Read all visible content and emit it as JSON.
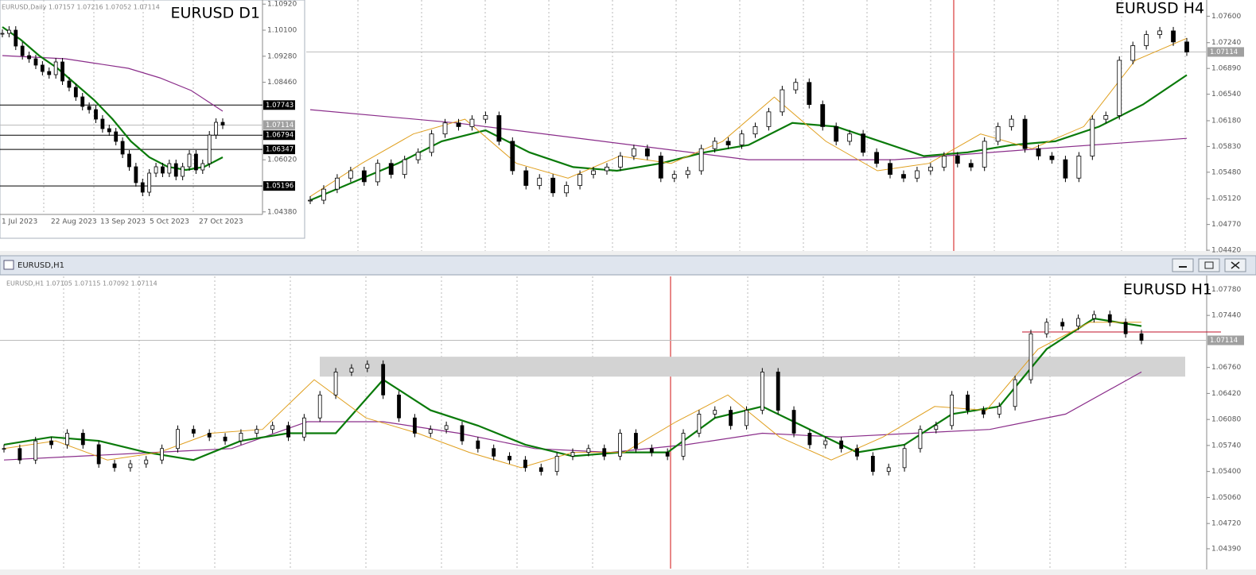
{
  "h4": {
    "title": "EURUSD H4",
    "ylim": [
      1.0441,
      1.0782
    ],
    "yticks": [
      {
        "value": 1.076,
        "label": "1.07600"
      },
      {
        "value": 1.0724,
        "label": "1.07240"
      },
      {
        "value": 1.0689,
        "label": "1.06890"
      },
      {
        "value": 1.0654,
        "label": "1.06540"
      },
      {
        "value": 1.0618,
        "label": "1.06180"
      },
      {
        "value": 1.0583,
        "label": "1.05830"
      },
      {
        "value": 1.0548,
        "label": "1.05480"
      },
      {
        "value": 1.0512,
        "label": "1.05120"
      },
      {
        "value": 1.0477,
        "label": "1.04770"
      },
      {
        "value": 1.0442,
        "label": "1.04420"
      }
    ],
    "price_label": 1.07114,
    "closes": [
      1.051,
      1.0525,
      1.054,
      1.055,
      1.0535,
      1.056,
      1.0545,
      1.0565,
      1.0575,
      1.06,
      1.0615,
      1.061,
      1.062,
      1.0625,
      1.059,
      1.055,
      1.053,
      1.054,
      1.052,
      1.053,
      1.0545,
      1.055,
      1.0555,
      1.057,
      1.058,
      1.057,
      1.054,
      1.0545,
      1.055,
      1.058,
      1.059,
      1.0585,
      1.06,
      1.061,
      1.063,
      1.066,
      1.067,
      1.064,
      1.061,
      1.059,
      1.06,
      1.0575,
      1.056,
      1.0545,
      1.054,
      1.055,
      1.0555,
      1.057,
      1.056,
      1.0555,
      1.059,
      1.061,
      1.062,
      1.058,
      1.057,
      1.0565,
      1.054,
      1.057,
      1.062,
      1.0625,
      1.07,
      1.072,
      1.0735,
      1.074,
      1.0725,
      1.07114
    ],
    "ma_fast": [
      1.0515,
      1.056,
      1.06,
      1.062,
      1.056,
      1.054,
      1.057,
      1.056,
      1.059,
      1.065,
      1.059,
      1.055,
      1.056,
      1.06,
      1.058,
      1.061,
      1.07,
      1.073
    ],
    "ma_mid": [
      1.051,
      1.0535,
      1.056,
      1.059,
      1.0605,
      1.0575,
      1.0555,
      1.055,
      1.056,
      1.0575,
      1.0585,
      1.0615,
      1.061,
      1.059,
      1.057,
      1.0575,
      1.0585,
      1.059,
      1.061,
      1.064,
      1.068
    ],
    "ma_slow": [
      1.0633,
      1.0615,
      1.059,
      1.0565,
      1.0565,
      1.058,
      1.0594
    ]
  },
  "d1": {
    "info": "EURUSD,Daily  1.07157 1.07216 1.07052 1.07114",
    "title": "EURUSD D1",
    "ylim": [
      1.043,
      1.1105
    ],
    "yticks": [
      {
        "value": 1.1092,
        "label": "1.10920"
      },
      {
        "value": 1.101,
        "label": "1.10100"
      },
      {
        "value": 1.0928,
        "label": "1.09280"
      },
      {
        "value": 1.0846,
        "label": "1.08460"
      },
      {
        "value": 1.0602,
        "label": "1.06020"
      },
      {
        "value": 1.0438,
        "label": "1.04380"
      }
    ],
    "levels": [
      1.07743,
      1.06794,
      1.06347,
      1.05196
    ],
    "price_label": 1.07114,
    "dates": [
      "1 Jul 2023",
      "22 Aug 2023",
      "13 Sep 2023",
      "5 Oct 2023",
      "27 Oct 2023"
    ],
    "closes": [
      1.1,
      1.101,
      1.096,
      1.093,
      1.092,
      1.09,
      1.088,
      1.087,
      1.091,
      1.085,
      1.083,
      1.08,
      1.077,
      1.076,
      1.073,
      1.07,
      1.069,
      1.066,
      1.062,
      1.058,
      1.053,
      1.05,
      1.056,
      1.058,
      1.056,
      1.059,
      1.055,
      1.058,
      1.062,
      1.057,
      1.059,
      1.068,
      1.072,
      1.07114
    ],
    "ma_mid": [
      1.102,
      1.098,
      1.093,
      1.089,
      1.084,
      1.079,
      1.073,
      1.066,
      1.061,
      1.058,
      1.057,
      1.058,
      1.061
    ],
    "ma_slow": [
      1.093,
      1.0925,
      1.092,
      1.0905,
      1.089,
      1.086,
      1.082,
      1.0755
    ]
  },
  "h1": {
    "window_title": "EURUSD,H1",
    "info": "EURUSD,H1  1.07105 1.07115 1.07092 1.07114",
    "title": "EURUSD H1",
    "ylim": [
      1.0413,
      1.0795
    ],
    "yticks": [
      {
        "value": 1.0778,
        "label": "1.07780"
      },
      {
        "value": 1.0744,
        "label": "1.07440"
      },
      {
        "value": 1.0676,
        "label": "1.06760"
      },
      {
        "value": 1.0642,
        "label": "1.06420"
      },
      {
        "value": 1.0608,
        "label": "1.06080"
      },
      {
        "value": 1.0574,
        "label": "1.05740"
      },
      {
        "value": 1.054,
        "label": "1.05400"
      },
      {
        "value": 1.0506,
        "label": "1.05060"
      },
      {
        "value": 1.0472,
        "label": "1.04720"
      },
      {
        "value": 1.0439,
        "label": "1.04390"
      }
    ],
    "price_label": 1.07114,
    "zone": [
      1.0664,
      1.069
    ],
    "closes": [
      1.057,
      1.0555,
      1.058,
      1.0575,
      1.059,
      1.0575,
      1.055,
      1.0545,
      1.055,
      1.0555,
      1.057,
      1.0595,
      1.059,
      1.0585,
      1.058,
      1.059,
      1.0595,
      1.06,
      1.0585,
      1.061,
      1.064,
      1.067,
      1.0675,
      1.068,
      1.064,
      1.061,
      1.059,
      1.0595,
      1.06,
      1.058,
      1.057,
      1.056,
      1.0555,
      1.0545,
      1.054,
      1.056,
      1.0565,
      1.057,
      1.056,
      1.059,
      1.057,
      1.0565,
      1.056,
      1.059,
      1.0615,
      1.062,
      1.06,
      1.062,
      1.067,
      1.062,
      1.059,
      1.0575,
      1.058,
      1.057,
      1.056,
      1.054,
      1.0545,
      1.057,
      1.0595,
      1.06,
      1.064,
      1.062,
      1.0615,
      1.0625,
      1.066,
      1.072,
      1.0735,
      1.073,
      1.074,
      1.0745,
      1.0735,
      1.072,
      1.07114
    ],
    "ma_fast": [
      1.057,
      1.058,
      1.0555,
      1.0565,
      1.059,
      1.0595,
      1.066,
      1.061,
      1.059,
      1.0565,
      1.0545,
      1.0565,
      1.0565,
      1.0605,
      1.064,
      1.0585,
      1.0555,
      1.0585,
      1.0625,
      1.062,
      1.07,
      1.0735,
      1.0735
    ],
    "ma_mid": [
      1.0575,
      1.0585,
      1.058,
      1.0565,
      1.0555,
      1.058,
      1.059,
      1.059,
      1.066,
      1.062,
      1.06,
      1.0575,
      1.056,
      1.0565,
      1.0565,
      1.061,
      1.0625,
      1.0595,
      1.0565,
      1.0575,
      1.0615,
      1.0625,
      1.07,
      1.074,
      1.073
    ],
    "ma_slow": [
      1.0555,
      1.056,
      1.0565,
      1.057,
      1.0605,
      1.0605,
      1.059,
      1.057,
      1.0565,
      1.0575,
      1.059,
      1.0585,
      1.059,
      1.0595,
      1.0615,
      1.067
    ]
  }
}
